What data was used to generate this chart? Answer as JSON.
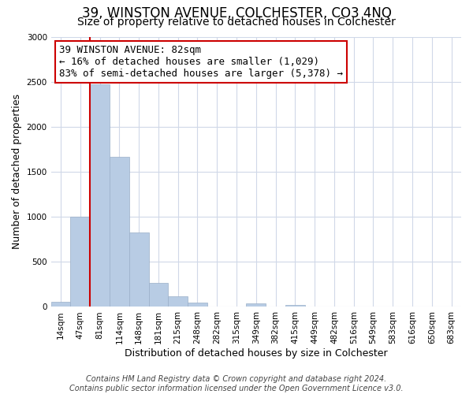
{
  "title": "39, WINSTON AVENUE, COLCHESTER, CO3 4NQ",
  "subtitle": "Size of property relative to detached houses in Colchester",
  "xlabel": "Distribution of detached houses by size in Colchester",
  "ylabel": "Number of detached properties",
  "footnote1": "Contains HM Land Registry data © Crown copyright and database right 2024.",
  "footnote2": "Contains public sector information licensed under the Open Government Licence v3.0.",
  "bin_labels": [
    "14sqm",
    "47sqm",
    "81sqm",
    "114sqm",
    "148sqm",
    "181sqm",
    "215sqm",
    "248sqm",
    "282sqm",
    "315sqm",
    "349sqm",
    "382sqm",
    "415sqm",
    "449sqm",
    "482sqm",
    "516sqm",
    "549sqm",
    "583sqm",
    "616sqm",
    "650sqm",
    "683sqm"
  ],
  "bin_values": [
    55,
    1000,
    2470,
    1670,
    830,
    270,
    120,
    45,
    0,
    0,
    40,
    0,
    20,
    0,
    0,
    0,
    0,
    0,
    0,
    0,
    0
  ],
  "bar_color": "#b8cce4",
  "bar_edgecolor": "#9aafc8",
  "vline_x_index": 2,
  "vline_color": "#cc0000",
  "annotation_line1": "39 WINSTON AVENUE: 82sqm",
  "annotation_line2": "← 16% of detached houses are smaller (1,029)",
  "annotation_line3": "83% of semi-detached houses are larger (5,378) →",
  "annotation_box_color": "#ffffff",
  "annotation_box_edgecolor": "#cc0000",
  "ylim": [
    0,
    3000
  ],
  "yticks": [
    0,
    500,
    1000,
    1500,
    2000,
    2500,
    3000
  ],
  "bg_color": "#ffffff",
  "grid_color": "#d0d8e8",
  "title_fontsize": 12,
  "subtitle_fontsize": 10,
  "axis_label_fontsize": 9,
  "tick_fontsize": 7.5,
  "annotation_fontsize": 9,
  "footnote_fontsize": 7
}
